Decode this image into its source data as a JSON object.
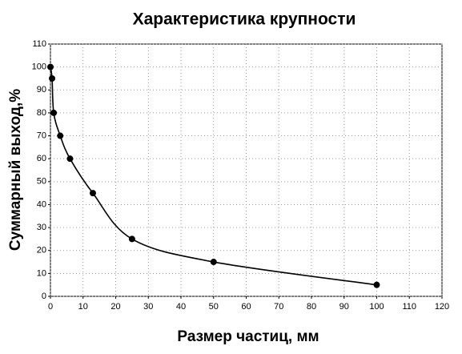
{
  "chart_data": {
    "type": "line",
    "title": "Характеристика крупности",
    "x_label": "Размер частиц, мм",
    "y_label": "Суммарный выход,%",
    "x": [
      0,
      0.5,
      1,
      3,
      6,
      13,
      25,
      50,
      100
    ],
    "series": [
      {
        "name": "Суммарный выход",
        "color": "#000000",
        "values": [
          100,
          95,
          80,
          70,
          60,
          45,
          25,
          15,
          5
        ]
      }
    ],
    "xlim": [
      0,
      120
    ],
    "xticks": [
      0,
      10,
      20,
      30,
      40,
      50,
      60,
      70,
      80,
      90,
      100,
      110,
      120
    ],
    "ylim": [
      0,
      110
    ],
    "yticks": [
      0,
      10,
      20,
      30,
      40,
      50,
      60,
      70,
      80,
      90,
      100,
      110
    ],
    "grid": true,
    "smooth": true
  }
}
